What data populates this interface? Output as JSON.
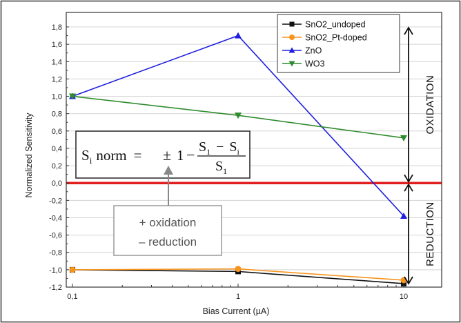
{
  "chart_data": {
    "type": "line",
    "x_scale": "log",
    "x": [
      0.1,
      1,
      10
    ],
    "x_tick_labels": [
      "0,1",
      "1",
      "10"
    ],
    "xlabel": "Bias Current (µA)",
    "ylabel": "Normalized Sensitivity",
    "ylim": [
      -1.2,
      1.8
    ],
    "y_ticks": [
      1.8,
      1.6,
      1.4,
      1.2,
      1.0,
      0.8,
      0.6,
      0.4,
      0.2,
      0.0,
      -0.2,
      -0.4,
      -0.6,
      -0.8,
      -1.0,
      -1.2
    ],
    "y_tick_labels": [
      "1,8",
      "1,6",
      "1,4",
      "1,2",
      "1,0",
      "0,8",
      "0,6",
      "0,4",
      "0,2",
      "0,0",
      "-0,2",
      "-0,4",
      "-0,6",
      "-0,8",
      "-1,0",
      "-1,2"
    ],
    "grid": "horizontal",
    "legend_position": "top-right",
    "series": [
      {
        "name": "SnO2_undoped",
        "values": [
          -1.0,
          -1.02,
          -1.16
        ],
        "color": "#111111",
        "marker": "square"
      },
      {
        "name": "SnO2_Pt-doped",
        "values": [
          -1.0,
          -0.99,
          -1.12
        ],
        "color": "#f7941d",
        "marker": "circle"
      },
      {
        "name": "ZnO",
        "values": [
          1.0,
          1.7,
          -0.38
        ],
        "color": "#1f1fe0",
        "marker": "triangle-up"
      },
      {
        "name": "WO3",
        "values": [
          1.0,
          0.78,
          0.52
        ],
        "color": "#2e8b2e",
        "marker": "triangle-down"
      }
    ],
    "reference_line": {
      "y": 0.0,
      "color": "#e11d1d"
    },
    "regions": [
      {
        "label": "OXIDATION",
        "from": 0.0,
        "to": 1.8
      },
      {
        "label": "REDUCTION",
        "from": -1.2,
        "to": 0.0
      }
    ],
    "annotations": {
      "formula": {
        "lhs_sub": "i",
        "word": "norm",
        "sign": "±",
        "one": "1",
        "num_a": "1",
        "num_b": "i",
        "den": "1"
      },
      "sign_note": [
        "+ oxidation",
        "– reduction"
      ]
    }
  }
}
